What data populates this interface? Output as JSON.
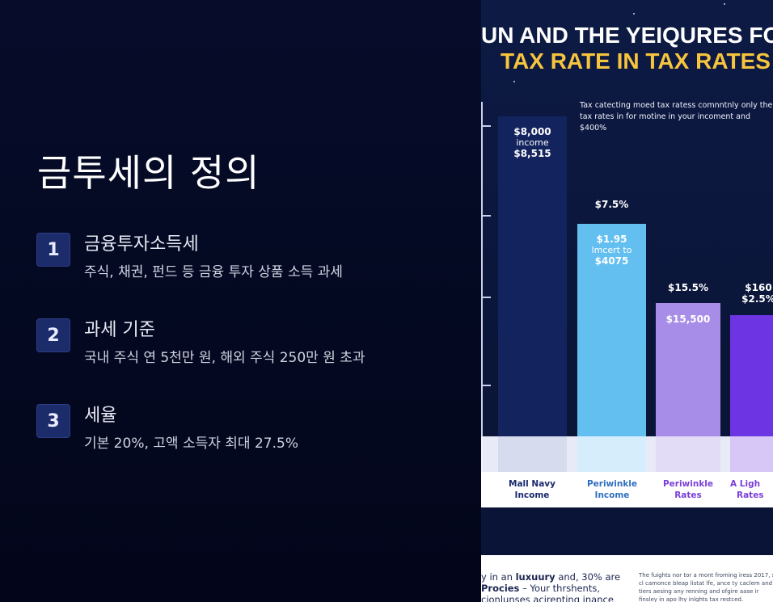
{
  "slide": {
    "title": "금투세의 정의",
    "items": [
      {
        "num": "1",
        "title": "금융투자소득세",
        "desc": "주식, 채권, 펀드 등 금융 투자 상품 소득 과세"
      },
      {
        "num": "2",
        "title": "과세 기준",
        "desc": "국내 주식 연 5천만 원, 해외 주식 250만 원 초과"
      },
      {
        "num": "3",
        "title": "세율",
        "desc": "기본 20%, 고액 소득자 최대 27.5%"
      }
    ]
  },
  "figure": {
    "title_line1": "UN AND THE YEIQURES FO",
    "title_line2": "TAX RATE IN TAX RATES",
    "note": "Tax catecting moed tax ratess comnntnly only the tax rates in for motine in your incoment and $400%",
    "bars": [
      {
        "top_label": "",
        "label_1": "$8,000",
        "label_2": "income",
        "label_3": "$8,515",
        "color": "#13235e"
      },
      {
        "top_label": "$7.5%",
        "label_1": "$1.95",
        "label_2": "lmcert to",
        "label_3": "$4075",
        "color": "#62bff0"
      },
      {
        "top_label": "$15.5%",
        "label_1": "$15,500",
        "label_2": "",
        "label_3": "",
        "color": "#a88de8"
      },
      {
        "top_label": "$160",
        "top_label_2": "$2.5%",
        "label_1": "",
        "label_2": "",
        "label_3": "",
        "color": "#6c34e2"
      }
    ],
    "legend": [
      {
        "line1": "Mall Navy",
        "line2": "Income",
        "color": "#1a2a6c"
      },
      {
        "line1": "Periwinkle",
        "line2": "Income",
        "color": "#2f6fc0"
      },
      {
        "line1": "Periwinkle",
        "line2": "Rates",
        "color": "#7a3fd8"
      },
      {
        "line1": "A Ligh",
        "line2": "Rates",
        "color": "#7a3fd8"
      }
    ],
    "caption_left_1": "y in an",
    "caption_left_bold_1": "luxuury",
    "caption_left_2": "and, 30% are",
    "caption_left_bold_2": "Procies",
    "caption_left_3": "– Your thrshents,",
    "caption_left_4": "cionlunses acirenting inance",
    "caption_right": "The fuights nor tor a mont froming iress 2017, s cl camonce bleap listat lfe, ance ty caclem and tiers aesing any renning and ofgire aase ir finsley in apo lhy inlghts tax restced."
  }
}
